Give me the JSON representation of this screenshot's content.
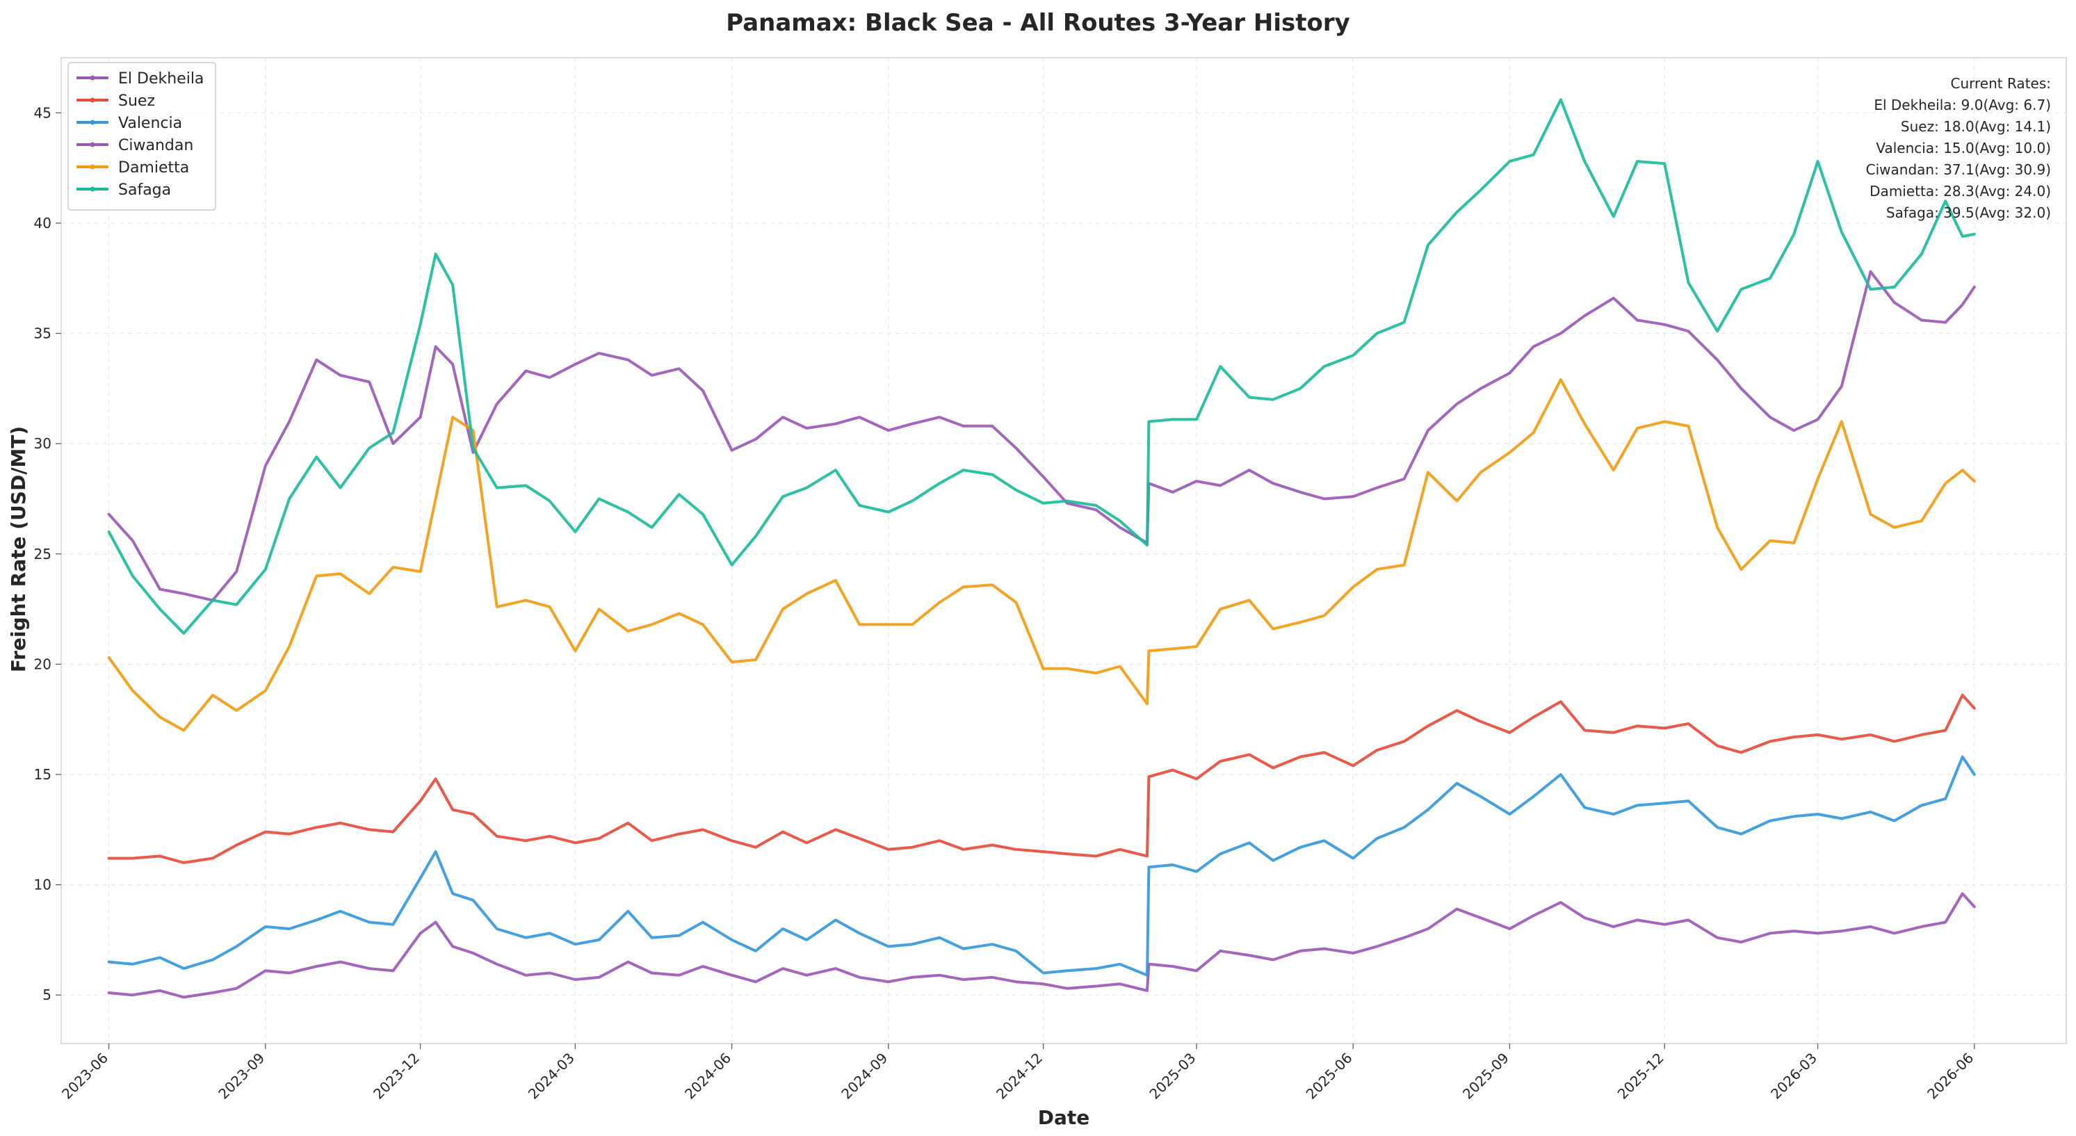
{
  "chart_data": {
    "type": "line",
    "title": "Panamax: Black Sea - All Routes 3-Year History",
    "xlabel": "Date",
    "ylabel": "Freight Rate (USD/MT)",
    "ylim": [
      2.8,
      47.5
    ],
    "yticks": [
      5,
      10,
      15,
      20,
      25,
      30,
      35,
      40,
      45
    ],
    "xlim": [
      "2023-05-04",
      "2026-07-25"
    ],
    "xticks": [
      "2023-06",
      "2023-09",
      "2023-12",
      "2024-03",
      "2024-06",
      "2024-09",
      "2024-12",
      "2025-03",
      "2025-06",
      "2025-09",
      "2025-12",
      "2026-03",
      "2026-06"
    ],
    "grid": true,
    "legend_position": "top-left",
    "annotation": {
      "heading": "Current Rates:",
      "lines": [
        "El Dekheila: 9.0(Avg: 6.7)",
        "Suez: 18.0(Avg: 14.1)",
        "Valencia: 15.0(Avg: 10.0)",
        "Ciwandan: 37.1(Avg: 30.9)",
        "Damietta: 28.3(Avg: 24.0)",
        "Safaga: 39.5(Avg: 32.0)"
      ]
    },
    "series": [
      {
        "name": "El Dekheila",
        "color": "#9b59b6",
        "x": [
          "2023-06-01",
          "2023-06-15",
          "2023-07-01",
          "2023-07-15",
          "2023-08-01",
          "2023-08-15",
          "2023-09-01",
          "2023-09-15",
          "2023-10-01",
          "2023-10-15",
          "2023-11-01",
          "2023-11-15",
          "2023-12-01",
          "2023-12-10",
          "2023-12-20",
          "2024-01-01",
          "2024-01-15",
          "2024-02-01",
          "2024-02-15",
          "2024-03-01",
          "2024-03-15",
          "2024-04-01",
          "2024-04-15",
          "2024-05-01",
          "2024-05-15",
          "2024-06-01",
          "2024-06-15",
          "2024-07-01",
          "2024-07-15",
          "2024-08-01",
          "2024-08-15",
          "2024-09-01",
          "2024-09-15",
          "2024-10-01",
          "2024-10-15",
          "2024-11-01",
          "2024-11-15",
          "2024-12-01",
          "2024-12-15",
          "2025-01-01",
          "2025-01-15",
          "2025-01-31",
          "2025-02-01",
          "2025-02-15",
          "2025-03-01",
          "2025-03-15",
          "2025-04-01",
          "2025-04-15",
          "2025-05-01",
          "2025-05-15",
          "2025-06-01",
          "2025-06-15",
          "2025-07-01",
          "2025-07-15",
          "2025-08-01",
          "2025-08-15",
          "2025-09-01",
          "2025-09-15",
          "2025-10-01",
          "2025-10-15",
          "2025-11-01",
          "2025-11-15",
          "2025-12-01",
          "2025-12-15",
          "2026-01-01",
          "2026-01-15",
          "2026-02-01",
          "2026-02-15",
          "2026-03-01",
          "2026-03-15",
          "2026-04-01",
          "2026-04-15",
          "2026-05-01",
          "2026-05-15",
          "2026-05-25",
          "2026-06-01"
        ],
        "values": [
          5.1,
          5.0,
          5.2,
          4.9,
          5.1,
          5.3,
          6.1,
          6.0,
          6.3,
          6.5,
          6.2,
          6.1,
          7.8,
          8.3,
          7.2,
          6.9,
          6.4,
          5.9,
          6.0,
          5.7,
          5.8,
          6.5,
          6.0,
          5.9,
          6.3,
          5.9,
          5.6,
          6.2,
          5.9,
          6.2,
          5.8,
          5.6,
          5.8,
          5.9,
          5.7,
          5.8,
          5.6,
          5.5,
          5.3,
          5.4,
          5.5,
          5.2,
          6.4,
          6.3,
          6.1,
          7.0,
          6.8,
          6.6,
          7.0,
          7.1,
          6.9,
          7.2,
          7.6,
          8.0,
          8.9,
          8.5,
          8.0,
          8.6,
          9.2,
          8.5,
          8.1,
          8.4,
          8.2,
          8.4,
          7.6,
          7.4,
          7.8,
          7.9,
          7.8,
          7.9,
          8.1,
          7.8,
          8.1,
          8.3,
          9.6,
          9.0
        ]
      },
      {
        "name": "Suez",
        "color": "#e74c3c",
        "x": [
          "2023-06-01",
          "2023-06-15",
          "2023-07-01",
          "2023-07-15",
          "2023-08-01",
          "2023-08-15",
          "2023-09-01",
          "2023-09-15",
          "2023-10-01",
          "2023-10-15",
          "2023-11-01",
          "2023-11-15",
          "2023-12-01",
          "2023-12-10",
          "2023-12-20",
          "2024-01-01",
          "2024-01-15",
          "2024-02-01",
          "2024-02-15",
          "2024-03-01",
          "2024-03-15",
          "2024-04-01",
          "2024-04-15",
          "2024-05-01",
          "2024-05-15",
          "2024-06-01",
          "2024-06-15",
          "2024-07-01",
          "2024-07-15",
          "2024-08-01",
          "2024-08-15",
          "2024-09-01",
          "2024-09-15",
          "2024-10-01",
          "2024-10-15",
          "2024-11-01",
          "2024-11-15",
          "2024-12-01",
          "2024-12-15",
          "2025-01-01",
          "2025-01-15",
          "2025-01-31",
          "2025-02-01",
          "2025-02-15",
          "2025-03-01",
          "2025-03-15",
          "2025-04-01",
          "2025-04-15",
          "2025-05-01",
          "2025-05-15",
          "2025-06-01",
          "2025-06-15",
          "2025-07-01",
          "2025-07-15",
          "2025-08-01",
          "2025-08-15",
          "2025-09-01",
          "2025-09-15",
          "2025-10-01",
          "2025-10-15",
          "2025-11-01",
          "2025-11-15",
          "2025-12-01",
          "2025-12-15",
          "2026-01-01",
          "2026-01-15",
          "2026-02-01",
          "2026-02-15",
          "2026-03-01",
          "2026-03-15",
          "2026-04-01",
          "2026-04-15",
          "2026-05-01",
          "2026-05-15",
          "2026-05-25",
          "2026-06-01"
        ],
        "values": [
          11.2,
          11.2,
          11.3,
          11.0,
          11.2,
          11.8,
          12.4,
          12.3,
          12.6,
          12.8,
          12.5,
          12.4,
          13.8,
          14.8,
          13.4,
          13.2,
          12.2,
          12.0,
          12.2,
          11.9,
          12.1,
          12.8,
          12.0,
          12.3,
          12.5,
          12.0,
          11.7,
          12.4,
          11.9,
          12.5,
          12.1,
          11.6,
          11.7,
          12.0,
          11.6,
          11.8,
          11.6,
          11.5,
          11.4,
          11.3,
          11.6,
          11.3,
          14.9,
          15.2,
          14.8,
          15.6,
          15.9,
          15.3,
          15.8,
          16.0,
          15.4,
          16.1,
          16.5,
          17.2,
          17.9,
          17.4,
          16.9,
          17.6,
          18.3,
          17.0,
          16.9,
          17.2,
          17.1,
          17.3,
          16.3,
          16.0,
          16.5,
          16.7,
          16.8,
          16.6,
          16.8,
          16.5,
          16.8,
          17.0,
          18.6,
          18.0
        ]
      },
      {
        "name": "Valencia",
        "color": "#3498db",
        "x": [
          "2023-06-01",
          "2023-06-15",
          "2023-07-01",
          "2023-07-15",
          "2023-08-01",
          "2023-08-15",
          "2023-09-01",
          "2023-09-15",
          "2023-10-01",
          "2023-10-15",
          "2023-11-01",
          "2023-11-15",
          "2023-12-01",
          "2023-12-10",
          "2023-12-20",
          "2024-01-01",
          "2024-01-15",
          "2024-02-01",
          "2024-02-15",
          "2024-03-01",
          "2024-03-15",
          "2024-04-01",
          "2024-04-15",
          "2024-05-01",
          "2024-05-15",
          "2024-06-01",
          "2024-06-15",
          "2024-07-01",
          "2024-07-15",
          "2024-08-01",
          "2024-08-15",
          "2024-09-01",
          "2024-09-15",
          "2024-10-01",
          "2024-10-15",
          "2024-11-01",
          "2024-11-15",
          "2024-12-01",
          "2024-12-15",
          "2025-01-01",
          "2025-01-15",
          "2025-01-31",
          "2025-02-01",
          "2025-02-15",
          "2025-03-01",
          "2025-03-15",
          "2025-04-01",
          "2025-04-15",
          "2025-05-01",
          "2025-05-15",
          "2025-06-01",
          "2025-06-15",
          "2025-07-01",
          "2025-07-15",
          "2025-08-01",
          "2025-08-15",
          "2025-09-01",
          "2025-09-15",
          "2025-10-01",
          "2025-10-15",
          "2025-11-01",
          "2025-11-15",
          "2025-12-01",
          "2025-12-15",
          "2026-01-01",
          "2026-01-15",
          "2026-02-01",
          "2026-02-15",
          "2026-03-01",
          "2026-03-15",
          "2026-04-01",
          "2026-04-15",
          "2026-05-01",
          "2026-05-15",
          "2026-05-25",
          "2026-06-01"
        ],
        "values": [
          6.5,
          6.4,
          6.7,
          6.2,
          6.6,
          7.2,
          8.1,
          8.0,
          8.4,
          8.8,
          8.3,
          8.2,
          10.3,
          11.5,
          9.6,
          9.3,
          8.0,
          7.6,
          7.8,
          7.3,
          7.5,
          8.8,
          7.6,
          7.7,
          8.3,
          7.5,
          7.0,
          8.0,
          7.5,
          8.4,
          7.8,
          7.2,
          7.3,
          7.6,
          7.1,
          7.3,
          7.0,
          6.0,
          6.1,
          6.2,
          6.4,
          5.9,
          10.8,
          10.9,
          10.6,
          11.4,
          11.9,
          11.1,
          11.7,
          12.0,
          11.2,
          12.1,
          12.6,
          13.4,
          14.6,
          14.0,
          13.2,
          14.0,
          15.0,
          13.5,
          13.2,
          13.6,
          13.7,
          13.8,
          12.6,
          12.3,
          12.9,
          13.1,
          13.2,
          13.0,
          13.3,
          12.9,
          13.6,
          13.9,
          15.8,
          15.0
        ]
      },
      {
        "name": "Ciwandan",
        "color": "#9b59b6",
        "x": [
          "2023-06-01",
          "2023-06-15",
          "2023-07-01",
          "2023-07-15",
          "2023-08-01",
          "2023-08-15",
          "2023-09-01",
          "2023-09-15",
          "2023-10-01",
          "2023-10-15",
          "2023-11-01",
          "2023-11-15",
          "2023-12-01",
          "2023-12-10",
          "2023-12-20",
          "2024-01-01",
          "2024-01-15",
          "2024-02-01",
          "2024-02-15",
          "2024-03-01",
          "2024-03-15",
          "2024-04-01",
          "2024-04-15",
          "2024-05-01",
          "2024-05-15",
          "2024-06-01",
          "2024-06-15",
          "2024-07-01",
          "2024-07-15",
          "2024-08-01",
          "2024-08-15",
          "2024-09-01",
          "2024-09-15",
          "2024-10-01",
          "2024-10-15",
          "2024-11-01",
          "2024-11-15",
          "2024-12-01",
          "2024-12-15",
          "2025-01-01",
          "2025-01-15",
          "2025-01-31",
          "2025-02-01",
          "2025-02-15",
          "2025-03-01",
          "2025-03-15",
          "2025-04-01",
          "2025-04-15",
          "2025-05-01",
          "2025-05-15",
          "2025-06-01",
          "2025-06-15",
          "2025-07-01",
          "2025-07-15",
          "2025-08-01",
          "2025-08-15",
          "2025-09-01",
          "2025-09-15",
          "2025-10-01",
          "2025-10-15",
          "2025-11-01",
          "2025-11-15",
          "2025-12-01",
          "2025-12-15",
          "2026-01-01",
          "2026-01-15",
          "2026-02-01",
          "2026-02-15",
          "2026-03-01",
          "2026-03-15",
          "2026-04-01",
          "2026-04-15",
          "2026-05-01",
          "2026-05-15",
          "2026-05-25",
          "2026-06-01"
        ],
        "values": [
          26.8,
          25.6,
          23.4,
          23.2,
          22.9,
          24.2,
          29.0,
          31.0,
          33.8,
          33.1,
          32.8,
          30.0,
          31.2,
          34.4,
          33.6,
          29.6,
          31.8,
          33.3,
          33.0,
          33.6,
          34.1,
          33.8,
          33.1,
          33.4,
          32.4,
          29.7,
          30.2,
          31.2,
          30.7,
          30.9,
          31.2,
          30.6,
          30.9,
          31.2,
          30.8,
          30.8,
          29.8,
          28.5,
          27.3,
          27.0,
          26.2,
          25.5,
          28.2,
          27.8,
          28.3,
          28.1,
          28.8,
          28.2,
          27.8,
          27.5,
          27.6,
          28.0,
          28.4,
          30.6,
          31.8,
          32.5,
          33.2,
          34.4,
          35.0,
          35.8,
          36.6,
          35.6,
          35.4,
          35.1,
          33.8,
          32.5,
          31.2,
          30.6,
          31.1,
          32.6,
          37.8,
          36.4,
          35.6,
          35.5,
          36.3,
          37.1
        ]
      },
      {
        "name": "Damietta",
        "color": "#f39c12",
        "x": [
          "2023-06-01",
          "2023-06-15",
          "2023-07-01",
          "2023-07-15",
          "2023-08-01",
          "2023-08-15",
          "2023-09-01",
          "2023-09-15",
          "2023-10-01",
          "2023-10-15",
          "2023-11-01",
          "2023-11-15",
          "2023-12-01",
          "2023-12-10",
          "2023-12-20",
          "2024-01-01",
          "2024-01-15",
          "2024-02-01",
          "2024-02-15",
          "2024-03-01",
          "2024-03-15",
          "2024-04-01",
          "2024-04-15",
          "2024-05-01",
          "2024-05-15",
          "2024-06-01",
          "2024-06-15",
          "2024-07-01",
          "2024-07-15",
          "2024-08-01",
          "2024-08-15",
          "2024-09-01",
          "2024-09-15",
          "2024-10-01",
          "2024-10-15",
          "2024-11-01",
          "2024-11-15",
          "2024-12-01",
          "2024-12-15",
          "2025-01-01",
          "2025-01-15",
          "2025-01-31",
          "2025-02-01",
          "2025-02-15",
          "2025-03-01",
          "2025-03-15",
          "2025-04-01",
          "2025-04-15",
          "2025-05-01",
          "2025-05-15",
          "2025-06-01",
          "2025-06-15",
          "2025-07-01",
          "2025-07-15",
          "2025-08-01",
          "2025-08-15",
          "2025-09-01",
          "2025-09-15",
          "2025-10-01",
          "2025-10-15",
          "2025-11-01",
          "2025-11-15",
          "2025-12-01",
          "2025-12-15",
          "2026-01-01",
          "2026-01-15",
          "2026-02-01",
          "2026-02-15",
          "2026-03-01",
          "2026-03-15",
          "2026-04-01",
          "2026-04-15",
          "2026-05-01",
          "2026-05-15",
          "2026-05-25",
          "2026-06-01"
        ],
        "values": [
          20.3,
          18.8,
          17.6,
          17.0,
          18.6,
          17.9,
          18.8,
          20.8,
          24.0,
          24.1,
          23.2,
          24.4,
          24.2,
          27.5,
          31.2,
          30.6,
          22.6,
          22.9,
          22.6,
          20.6,
          22.5,
          21.5,
          21.8,
          22.3,
          21.8,
          20.1,
          20.2,
          22.5,
          23.2,
          23.8,
          21.8,
          21.8,
          21.8,
          22.8,
          23.5,
          23.6,
          22.8,
          19.8,
          19.8,
          19.6,
          19.9,
          18.2,
          20.6,
          20.7,
          20.8,
          22.5,
          22.9,
          21.6,
          21.9,
          22.2,
          23.5,
          24.3,
          24.5,
          28.7,
          27.4,
          28.7,
          29.6,
          30.5,
          32.9,
          30.9,
          28.8,
          30.7,
          31.0,
          30.8,
          26.2,
          24.3,
          25.6,
          25.5,
          28.4,
          31.0,
          26.8,
          26.2,
          26.5,
          28.2,
          28.8,
          28.3
        ]
      },
      {
        "name": "Safaga",
        "color": "#1abc9c",
        "x": [
          "2023-06-01",
          "2023-06-15",
          "2023-07-01",
          "2023-07-15",
          "2023-08-01",
          "2023-08-15",
          "2023-09-01",
          "2023-09-15",
          "2023-10-01",
          "2023-10-15",
          "2023-11-01",
          "2023-11-15",
          "2023-12-01",
          "2023-12-10",
          "2023-12-20",
          "2024-01-01",
          "2024-01-15",
          "2024-02-01",
          "2024-02-15",
          "2024-03-01",
          "2024-03-15",
          "2024-04-01",
          "2024-04-15",
          "2024-05-01",
          "2024-05-15",
          "2024-06-01",
          "2024-06-15",
          "2024-07-01",
          "2024-07-15",
          "2024-08-01",
          "2024-08-15",
          "2024-09-01",
          "2024-09-15",
          "2024-10-01",
          "2024-10-15",
          "2024-11-01",
          "2024-11-15",
          "2024-12-01",
          "2024-12-15",
          "2025-01-01",
          "2025-01-15",
          "2025-01-31",
          "2025-02-01",
          "2025-02-15",
          "2025-03-01",
          "2025-03-15",
          "2025-04-01",
          "2025-04-15",
          "2025-05-01",
          "2025-05-15",
          "2025-06-01",
          "2025-06-15",
          "2025-07-01",
          "2025-07-15",
          "2025-08-01",
          "2025-08-15",
          "2025-09-01",
          "2025-09-15",
          "2025-10-01",
          "2025-10-15",
          "2025-11-01",
          "2025-11-15",
          "2025-12-01",
          "2025-12-15",
          "2026-01-01",
          "2026-01-15",
          "2026-02-01",
          "2026-02-15",
          "2026-03-01",
          "2026-03-15",
          "2026-04-01",
          "2026-04-15",
          "2026-05-01",
          "2026-05-15",
          "2026-05-25",
          "2026-06-01"
        ],
        "values": [
          26.0,
          24.0,
          22.5,
          21.4,
          22.9,
          22.7,
          24.3,
          27.5,
          29.4,
          28.0,
          29.8,
          30.5,
          35.4,
          38.6,
          37.2,
          29.8,
          28.0,
          28.1,
          27.4,
          26.0,
          27.5,
          26.9,
          26.2,
          27.7,
          26.8,
          24.5,
          25.8,
          27.6,
          28.0,
          28.8,
          27.2,
          26.9,
          27.4,
          28.2,
          28.8,
          28.6,
          27.9,
          27.3,
          27.4,
          27.2,
          26.5,
          25.4,
          31.0,
          31.1,
          31.1,
          33.5,
          32.1,
          32.0,
          32.5,
          33.5,
          34.0,
          35.0,
          35.5,
          39.0,
          40.5,
          41.5,
          42.8,
          43.1,
          45.6,
          42.8,
          40.3,
          42.8,
          42.7,
          37.3,
          35.1,
          37.0,
          37.5,
          39.5,
          42.8,
          39.6,
          37.0,
          37.1,
          38.6,
          41.0,
          39.4,
          39.5
        ]
      }
    ]
  }
}
